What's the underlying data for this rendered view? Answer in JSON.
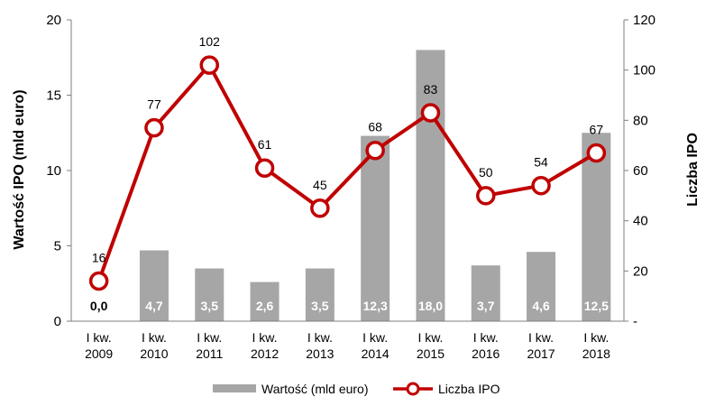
{
  "chart_data": {
    "type": "bar",
    "categories": [
      [
        "I kw.",
        "2009"
      ],
      [
        "I kw.",
        "2010"
      ],
      [
        "I kw.",
        "2011"
      ],
      [
        "I kw.",
        "2012"
      ],
      [
        "I kw.",
        "2013"
      ],
      [
        "I kw.",
        "2014"
      ],
      [
        "I kw.",
        "2015"
      ],
      [
        "I kw.",
        "2016"
      ],
      [
        "I kw.",
        "2017"
      ],
      [
        "I kw.",
        "2018"
      ]
    ],
    "series": [
      {
        "name": "Wartość (mld euro)",
        "type": "bar",
        "axis": "left",
        "color": "#a6a6a6",
        "values": [
          0.0,
          4.7,
          3.5,
          2.6,
          3.5,
          12.3,
          18.0,
          3.7,
          4.6,
          12.5
        ],
        "labels": [
          "0,0",
          "4,7",
          "3,5",
          "2,6",
          "3,5",
          "12,3",
          "18,0",
          "3,7",
          "4,6",
          "12,5"
        ]
      },
      {
        "name": "Liczba IPO",
        "type": "line",
        "axis": "right",
        "color": "#c00000",
        "values": [
          16,
          77,
          102,
          61,
          45,
          68,
          83,
          50,
          54,
          67
        ],
        "labels": [
          "16",
          "77",
          "102",
          "61",
          "45",
          "68",
          "83",
          "50",
          "54",
          "67"
        ]
      }
    ],
    "ylabel": "Wartość IPO (mld euro)",
    "y2label": "Liczba IPO",
    "ylim": [
      0,
      20
    ],
    "y2lim": [
      0,
      120
    ],
    "yticks": [
      0,
      5,
      10,
      15,
      20
    ],
    "ytick_labels": [
      "0",
      "5",
      "10",
      "15",
      "20"
    ],
    "y2ticks": [
      0,
      20,
      40,
      60,
      80,
      100,
      120
    ],
    "y2tick_labels": [
      "-",
      "20",
      "40",
      "60",
      "80",
      "100",
      "120"
    ],
    "grid": false,
    "legend": "bottom"
  }
}
